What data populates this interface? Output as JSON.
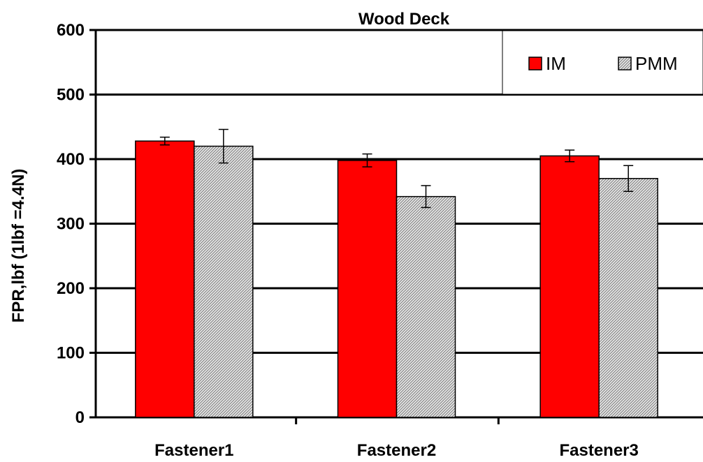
{
  "chart_data": {
    "type": "bar",
    "title": "Wood Deck",
    "xlabel": "",
    "ylabel": "FPR,lbf (1lbf =4.4N)",
    "ylim": [
      0,
      600
    ],
    "yticks": [
      0,
      100,
      200,
      300,
      400,
      500,
      600
    ],
    "categories": [
      "Fastener1",
      "Fastener2",
      "Fastener3"
    ],
    "series": [
      {
        "name": "IM",
        "values": [
          428,
          398,
          405
        ],
        "errors": [
          6,
          10,
          9
        ],
        "color": "#ff0000",
        "pattern": "solid"
      },
      {
        "name": "PMM",
        "values": [
          420,
          342,
          370
        ],
        "errors": [
          26,
          17,
          20
        ],
        "color": "#b0b0b0",
        "pattern": "hatched"
      }
    ],
    "grid": true,
    "legend": "top-right"
  }
}
